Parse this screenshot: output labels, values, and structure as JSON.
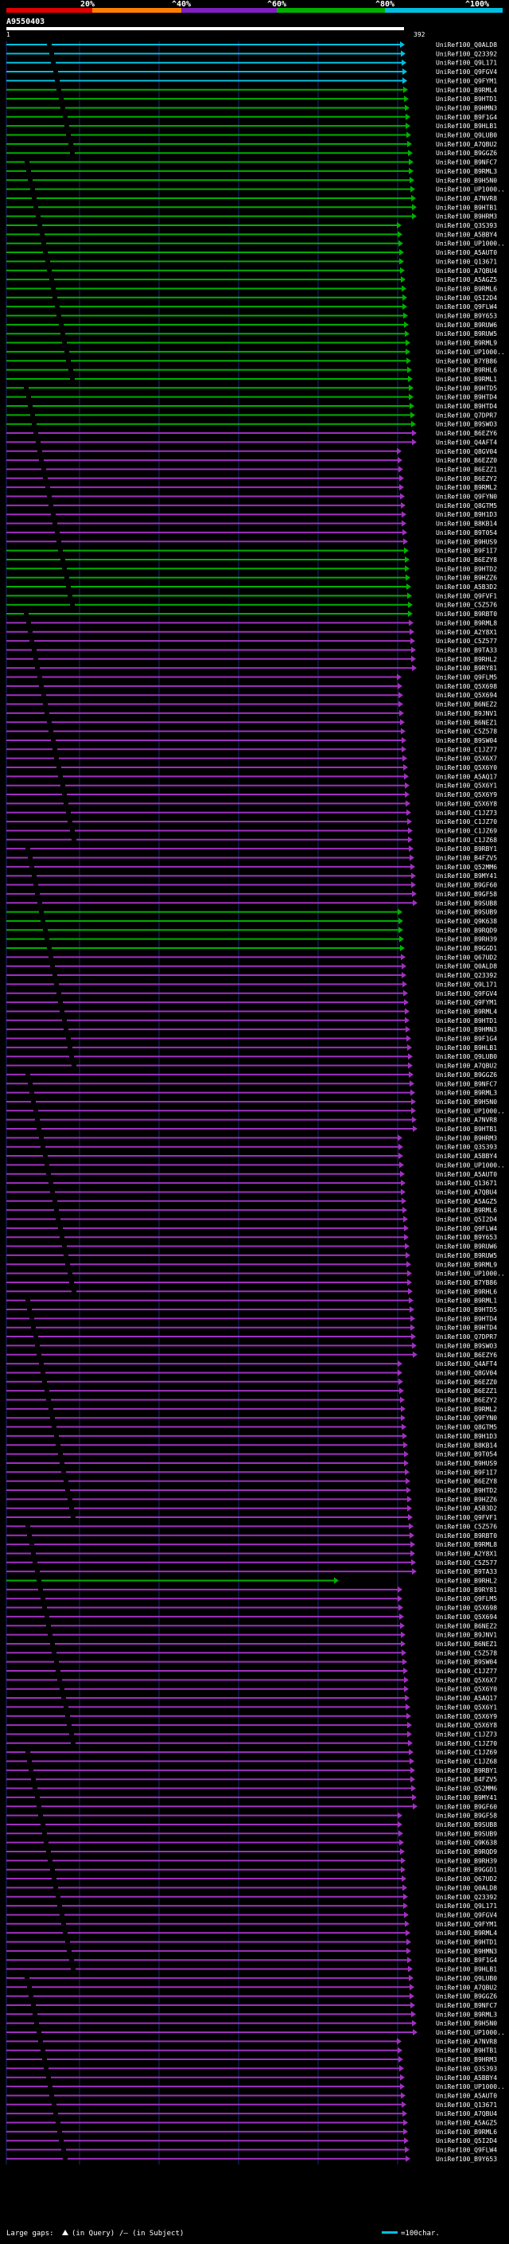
{
  "scale": {
    "ticks": [
      "20%",
      "^40%",
      "^60%",
      "^80%",
      "^100%"
    ],
    "band_colors": [
      "#e00000",
      "#ff8000",
      "#8020c0",
      "#00b000",
      "#00c0e0"
    ]
  },
  "query": {
    "id": "A9550403",
    "start_label": "1",
    "end_label": "392",
    "length": 392
  },
  "hits": {
    "count": 235,
    "label_prefix": "UniRef100_",
    "first_labels": [
      "Q0ALD8",
      "Q23392",
      "Q9L171",
      "Q9FGV4",
      "Q9FYM1",
      "B9RML4",
      "B9HTD1",
      "B9HMN3",
      "B9F1G4",
      "B9HLB1",
      "Q9LUB0",
      "A7QBU2",
      "B9GGZ6",
      "B9NFC7",
      "B9RML3",
      "B9H5N0",
      "UP1000..",
      "A7NVR8",
      "B9HTB1",
      "B9HRM3",
      "Q3S393",
      "A5BBY4",
      "UP1000..",
      "A5AUT0",
      "Q13671",
      "A7QBU4",
      "A5AGZ5",
      "B9RML6",
      "Q5I2D4",
      "Q9FLW4",
      "B9Y653",
      "B9RUW6",
      "B9RUW5",
      "B9RML9",
      "UP1000..",
      "B7YB86",
      "B9RHL6",
      "B9RML1",
      "B9HTD5",
      "B9HTD4",
      "B9HTD4",
      "Q7DPR7",
      "B9SWO3",
      "B6EZY6",
      "Q4AFT4",
      "Q8GV04",
      "B6EZZ0",
      "B6EZZ1",
      "B6EZY2",
      "B9RML2",
      "Q9FYN0",
      "Q8GTM5",
      "B9H1D3",
      "B8KB14",
      "B9T054",
      "B9HUS9",
      "B9F1I7",
      "B6EZY8",
      "B9HTD2",
      "B9HZZ6",
      "A5B3D2",
      "Q9FVF1",
      "C5Z576",
      "B9RBT0",
      "B9RML8",
      "A2Y8X1",
      "C5Z577",
      "B9TA33",
      "B9RHL2",
      "B9RY81",
      "Q9FLM5",
      "Q5X698",
      "Q5X694",
      "B6NEZ2",
      "B9JNV1",
      "B6NEZ1",
      "C5Z578",
      "B9SW04",
      "C1JZ77",
      "Q5X6X7",
      "Q5X6Y0",
      "A5AQ17",
      "Q5X6Y1",
      "Q5X6Y9",
      "Q5X6Y8",
      "C1JZ73",
      "C1JZ70",
      "C1JZ69",
      "C1JZ68",
      "B9RBY1",
      "B4FZV5",
      "Q52MM6",
      "B9MY41",
      "B9GF60",
      "B9GF58",
      "B9SUB8",
      "B9SUB9",
      "Q9K638",
      "B9RQD9",
      "B9RH39",
      "B9GGD1",
      "Q67UD2"
    ],
    "bound_labels": "hits.first_labels"
  },
  "legend": {
    "large_gaps_label": "Large gaps:",
    "query_gap_label": "(in Query)",
    "subject_gap_label": "/— (in Subject)",
    "scale_label": "=100char."
  },
  "colors": {
    "background": "#000000",
    "grid": "#1a2a7a",
    "alignment_green": "#00b000",
    "alignment_purple": "#a030c0",
    "alignment_cyan": "#00c0e0",
    "text": "#ffffff"
  }
}
